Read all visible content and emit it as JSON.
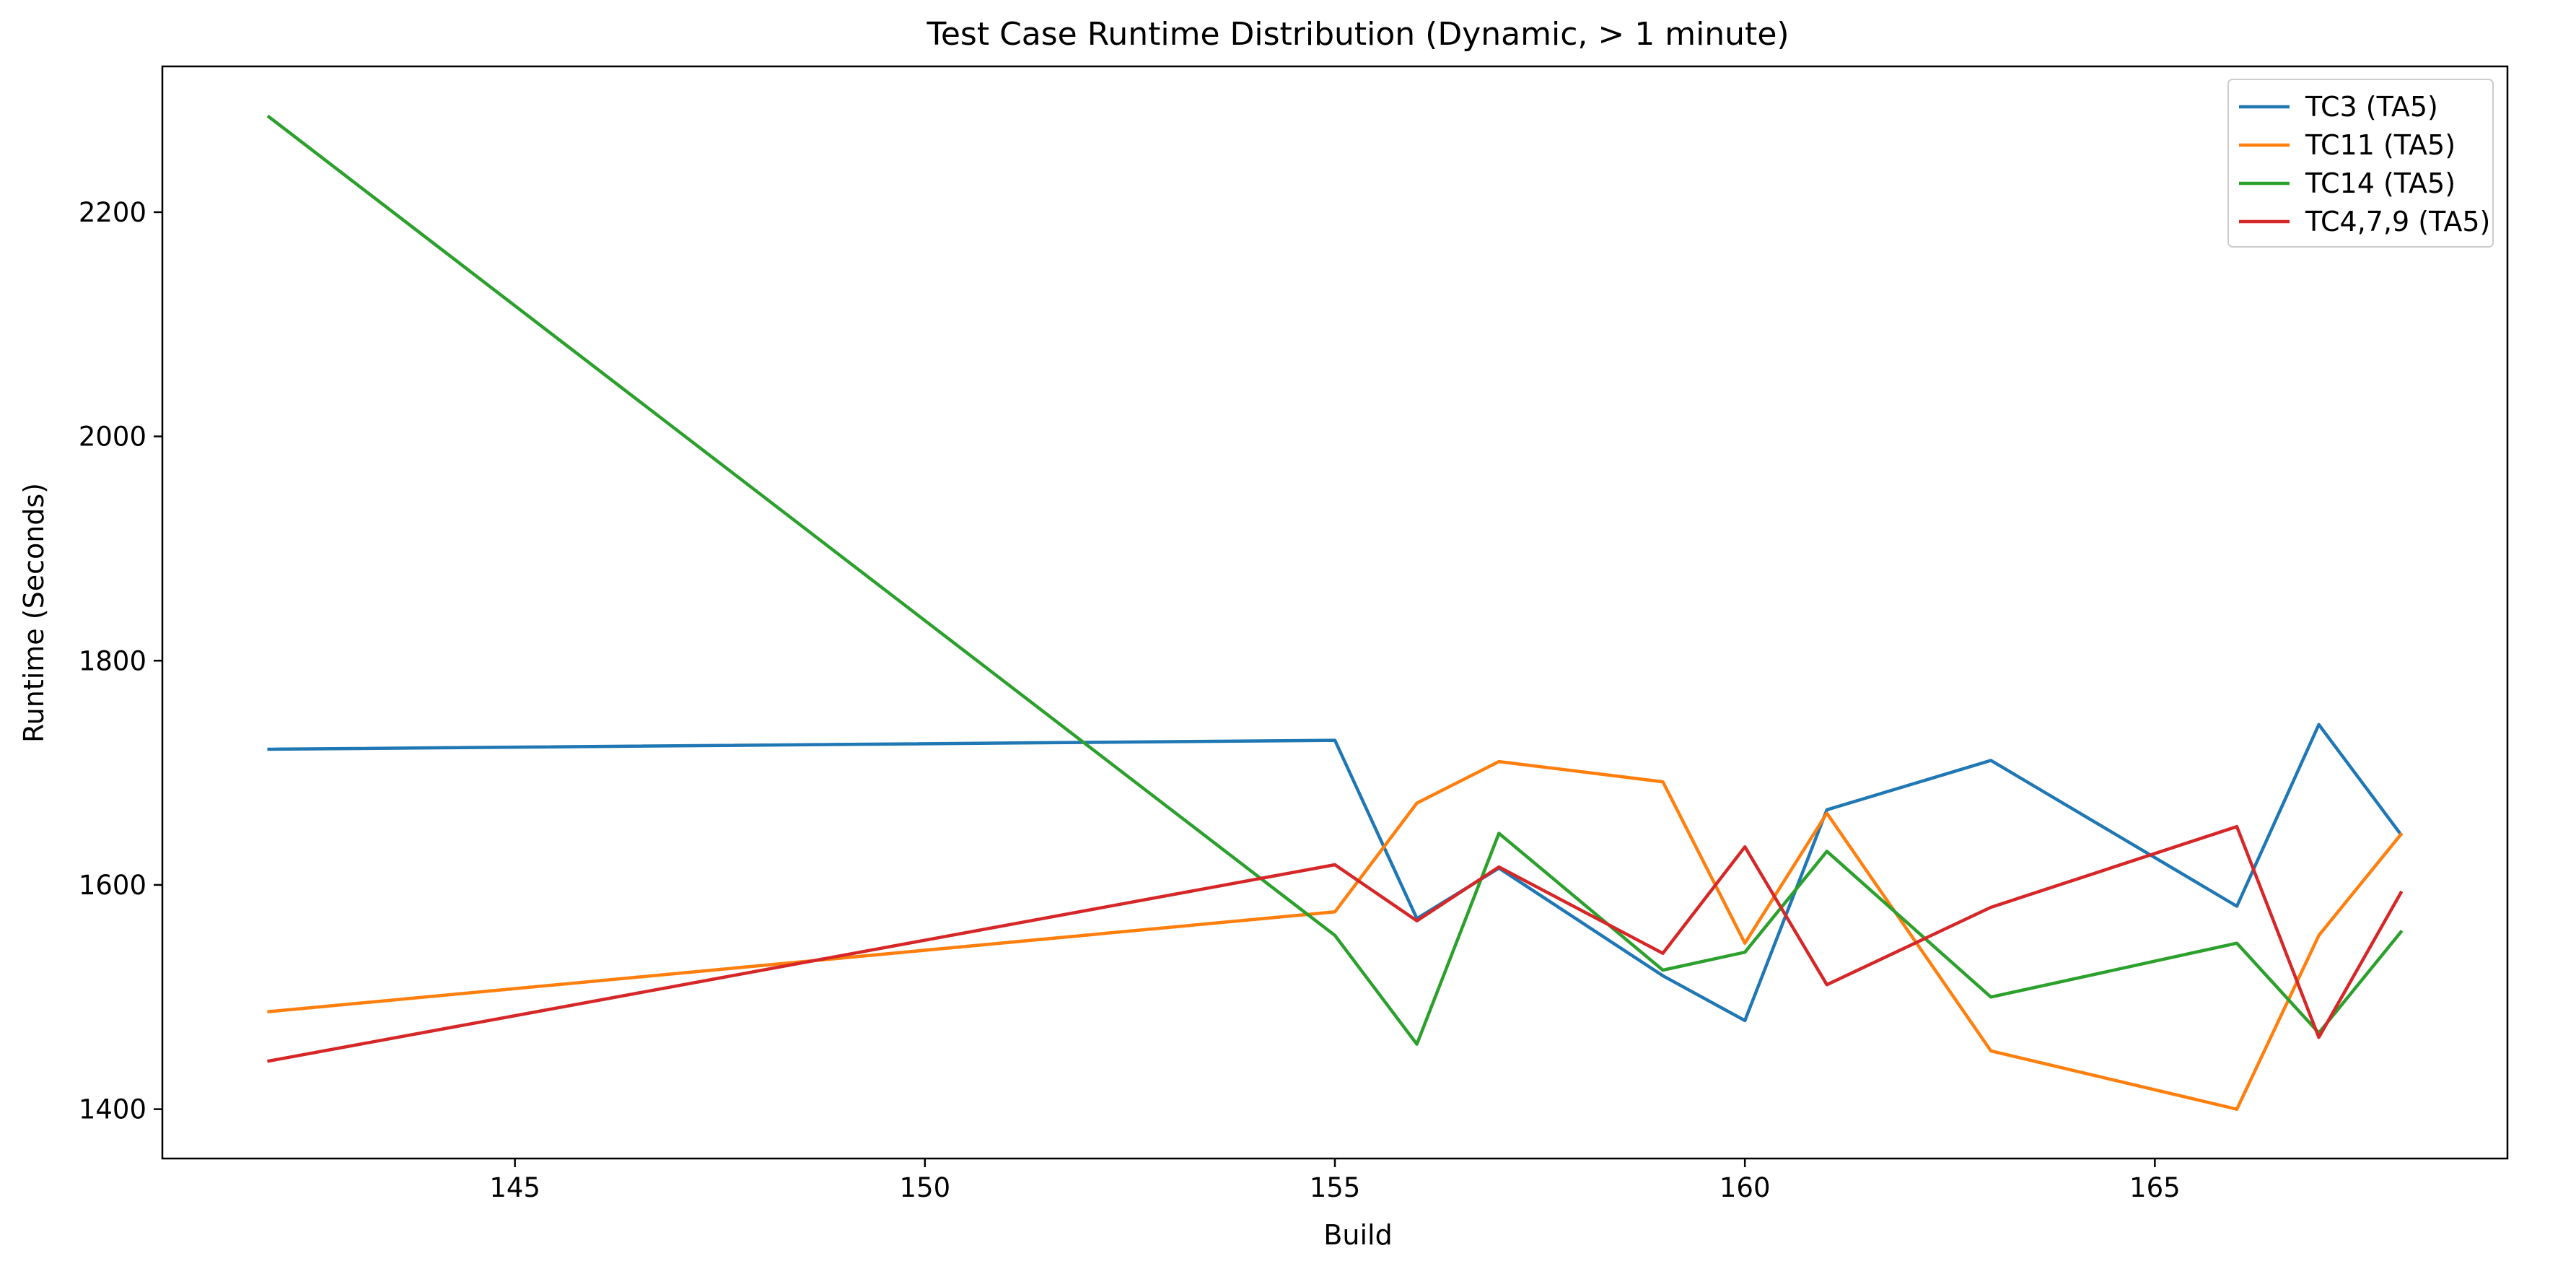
{
  "chart_data": {
    "type": "line",
    "title": "Test Case Runtime Distribution (Dynamic, > 1 minute)",
    "xlabel": "Build",
    "ylabel": "Runtime (Seconds)",
    "xlim": [
      140.7,
      169.3
    ],
    "ylim": [
      1356,
      2330
    ],
    "x_ticks": [
      145,
      150,
      155,
      160,
      165
    ],
    "y_ticks": [
      1400,
      1600,
      1800,
      2000,
      2200
    ],
    "grid": false,
    "legend_position": "top-right",
    "x": [
      142,
      155,
      156,
      157,
      159,
      160,
      161,
      163,
      166,
      167,
      168
    ],
    "series": [
      {
        "name": "TC3 (TA5)",
        "color": "#1f77b4",
        "values": [
          1721,
          1729,
          1570,
          1615,
          1519,
          1479,
          1667,
          1711,
          1581,
          1743,
          1645
        ]
      },
      {
        "name": "TC11 (TA5)",
        "color": "#ff7f0e",
        "values": [
          1487,
          1576,
          1673,
          1710,
          1692,
          1548,
          1664,
          1452,
          1400,
          1555,
          1645
        ]
      },
      {
        "name": "TC14 (TA5)",
        "color": "#2ca02c",
        "values": [
          2285,
          1555,
          1458,
          1646,
          1524,
          1540,
          1630,
          1500,
          1548,
          1468,
          1558
        ]
      },
      {
        "name": "TC4,7,9 (TA5)",
        "color": "#d62728",
        "values": [
          1443,
          1618,
          1568,
          1616,
          1539,
          1634,
          1511,
          1580,
          1652,
          1464,
          1593
        ]
      }
    ]
  }
}
